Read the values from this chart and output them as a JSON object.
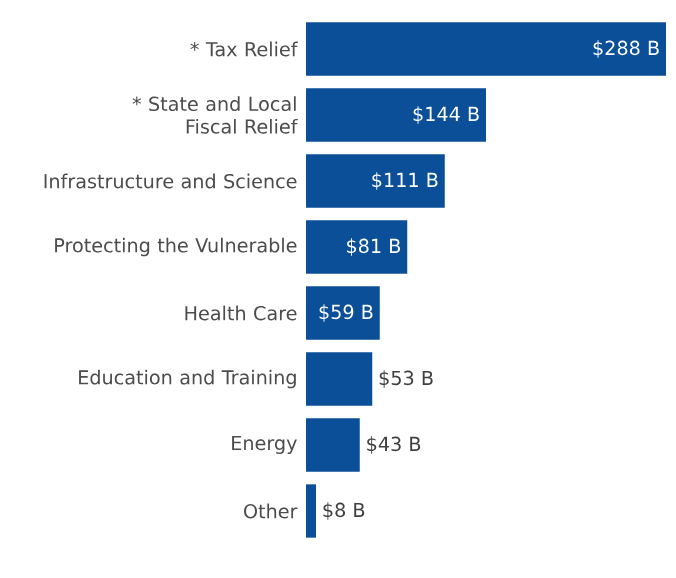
{
  "chart_data": {
    "type": "bar",
    "orientation": "horizontal",
    "categories": [
      "* Tax Relief",
      "* State and Local Fiscal Relief",
      "Infrastructure and Science",
      "Protecting the Vulnerable",
      "Health Care",
      "Education and Training",
      "Energy",
      "Other"
    ],
    "values": [
      288,
      144,
      111,
      81,
      59,
      53,
      43,
      8
    ],
    "value_labels": [
      "$288 B",
      "$144 B",
      "$111 B",
      "$81 B",
      "$59 B",
      "$53 B",
      "$43 B",
      "$8 B"
    ],
    "color": "#0a4f98"
  }
}
